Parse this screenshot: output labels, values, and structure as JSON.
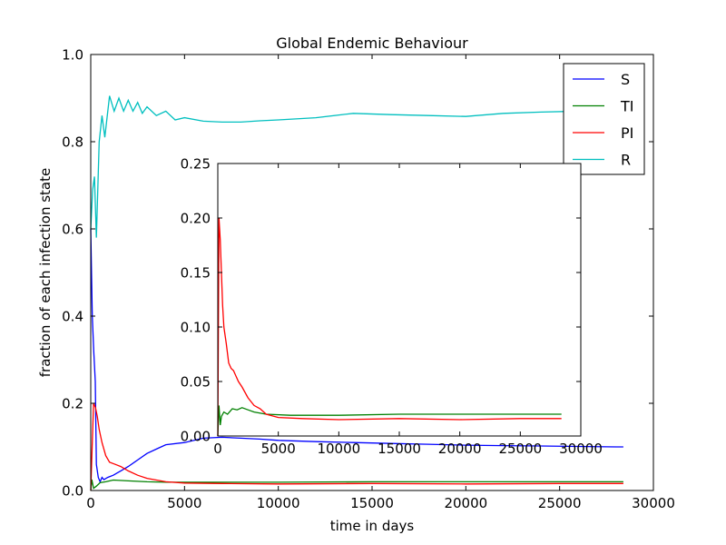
{
  "chart_data": [
    {
      "type": "line",
      "title": "Global Endemic Behaviour",
      "xlabel": "time in days",
      "ylabel": "fraction of each infection state",
      "xlim": [
        0,
        30000
      ],
      "ylim": [
        0,
        1.0
      ],
      "x_ticks": [
        0,
        5000,
        10000,
        15000,
        20000,
        25000,
        30000
      ],
      "x_tick_labels": [
        "0",
        "5000",
        "10000",
        "15000",
        "20000",
        "25000",
        "30000"
      ],
      "y_ticks": [
        0,
        0.2,
        0.4,
        0.6,
        0.8,
        1.0
      ],
      "y_tick_labels": [
        "0.0",
        "0.2",
        "0.4",
        "0.6",
        "0.8",
        "1.0"
      ],
      "grid": false,
      "legend": "top-right",
      "series": [
        {
          "name": "S",
          "color": "#0000ff",
          "x": [
            0,
            80,
            160,
            240,
            300,
            400,
            500,
            600,
            700,
            900,
            1200,
            1600,
            2000,
            2500,
            3000,
            3500,
            4000,
            5000,
            6000,
            7000,
            8000,
            9000,
            10000,
            12000,
            14000,
            16000,
            18000,
            20000,
            22000,
            24000,
            26000,
            28000,
            28400
          ],
          "y": [
            0.6,
            0.4,
            0.32,
            0.25,
            0.06,
            0.03,
            0.02,
            0.03,
            0.025,
            0.03,
            0.035,
            0.045,
            0.055,
            0.07,
            0.085,
            0.095,
            0.105,
            0.11,
            0.12,
            0.122,
            0.12,
            0.118,
            0.115,
            0.112,
            0.11,
            0.108,
            0.106,
            0.104,
            0.103,
            0.102,
            0.101,
            0.1,
            0.1
          ]
        },
        {
          "name": "TI",
          "color": "#008000",
          "x": [
            0,
            60,
            150,
            300,
            500,
            800,
            1200,
            2000,
            3000,
            4000,
            6000,
            8000,
            10000,
            15000,
            20000,
            25000,
            28400
          ],
          "y": [
            0.0,
            0.025,
            0.005,
            0.01,
            0.018,
            0.02,
            0.024,
            0.022,
            0.02,
            0.019,
            0.019,
            0.019,
            0.019,
            0.02,
            0.02,
            0.02,
            0.02
          ]
        },
        {
          "name": "PI",
          "color": "#ff0000",
          "x": [
            0,
            150,
            250,
            350,
            450,
            600,
            800,
            1000,
            1300,
            1600,
            2000,
            2500,
            3000,
            4000,
            5000,
            7000,
            10000,
            15000,
            20000,
            25000,
            28400
          ],
          "y": [
            0.0,
            0.2,
            0.19,
            0.17,
            0.14,
            0.11,
            0.08,
            0.065,
            0.06,
            0.055,
            0.045,
            0.035,
            0.028,
            0.02,
            0.017,
            0.016,
            0.015,
            0.016,
            0.015,
            0.016,
            0.016
          ]
        },
        {
          "name": "R",
          "color": "#00bfbf",
          "x": [
            0,
            100,
            200,
            300,
            450,
            600,
            750,
            1000,
            1250,
            1500,
            1750,
            2000,
            2250,
            2500,
            2750,
            3000,
            3500,
            4000,
            4500,
            5000,
            6000,
            7000,
            8000,
            9000,
            10000,
            12000,
            14000,
            16000,
            18000,
            20000,
            22000,
            24000,
            26000,
            28400
          ],
          "y": [
            0.6,
            0.69,
            0.72,
            0.58,
            0.8,
            0.86,
            0.81,
            0.905,
            0.87,
            0.9,
            0.87,
            0.895,
            0.87,
            0.89,
            0.865,
            0.88,
            0.86,
            0.87,
            0.85,
            0.855,
            0.847,
            0.845,
            0.845,
            0.848,
            0.85,
            0.855,
            0.865,
            0.862,
            0.86,
            0.858,
            0.865,
            0.868,
            0.87,
            0.87
          ]
        }
      ]
    },
    {
      "type": "line",
      "title": "",
      "xlabel": "",
      "ylabel": "",
      "xlim": [
        0,
        30000
      ],
      "ylim": [
        0,
        0.25
      ],
      "x_ticks": [
        0,
        5000,
        10000,
        15000,
        20000,
        25000,
        30000
      ],
      "x_tick_labels": [
        "0",
        "5000",
        "10000",
        "15000",
        "20000",
        "25000",
        "30000"
      ],
      "y_ticks": [
        0,
        0.05,
        0.1,
        0.15,
        0.2,
        0.25
      ],
      "y_tick_labels": [
        "0.00",
        "0.05",
        "0.10",
        "0.15",
        "0.20",
        "0.25"
      ],
      "grid": false,
      "series": [
        {
          "name": "TI",
          "color": "#008000",
          "x": [
            0,
            100,
            200,
            300,
            500,
            800,
            1200,
            1600,
            2000,
            2500,
            3000,
            4000,
            6000,
            8000,
            10000,
            15000,
            20000,
            25000,
            28400
          ],
          "y": [
            0.0,
            0.028,
            0.01,
            0.018,
            0.022,
            0.02,
            0.025,
            0.024,
            0.026,
            0.024,
            0.022,
            0.02,
            0.019,
            0.019,
            0.019,
            0.02,
            0.02,
            0.02,
            0.02
          ]
        },
        {
          "name": "PI",
          "color": "#ff0000",
          "x": [
            0,
            100,
            150,
            200,
            300,
            400,
            500,
            700,
            900,
            1100,
            1300,
            1500,
            1700,
            2000,
            2500,
            3000,
            3500,
            4000,
            5000,
            7000,
            10000,
            15000,
            20000,
            25000,
            28400
          ],
          "y": [
            0.0,
            0.2,
            0.19,
            0.18,
            0.15,
            0.12,
            0.1,
            0.085,
            0.067,
            0.062,
            0.06,
            0.055,
            0.05,
            0.045,
            0.035,
            0.028,
            0.025,
            0.02,
            0.017,
            0.016,
            0.015,
            0.016,
            0.015,
            0.016,
            0.016
          ]
        }
      ]
    }
  ]
}
